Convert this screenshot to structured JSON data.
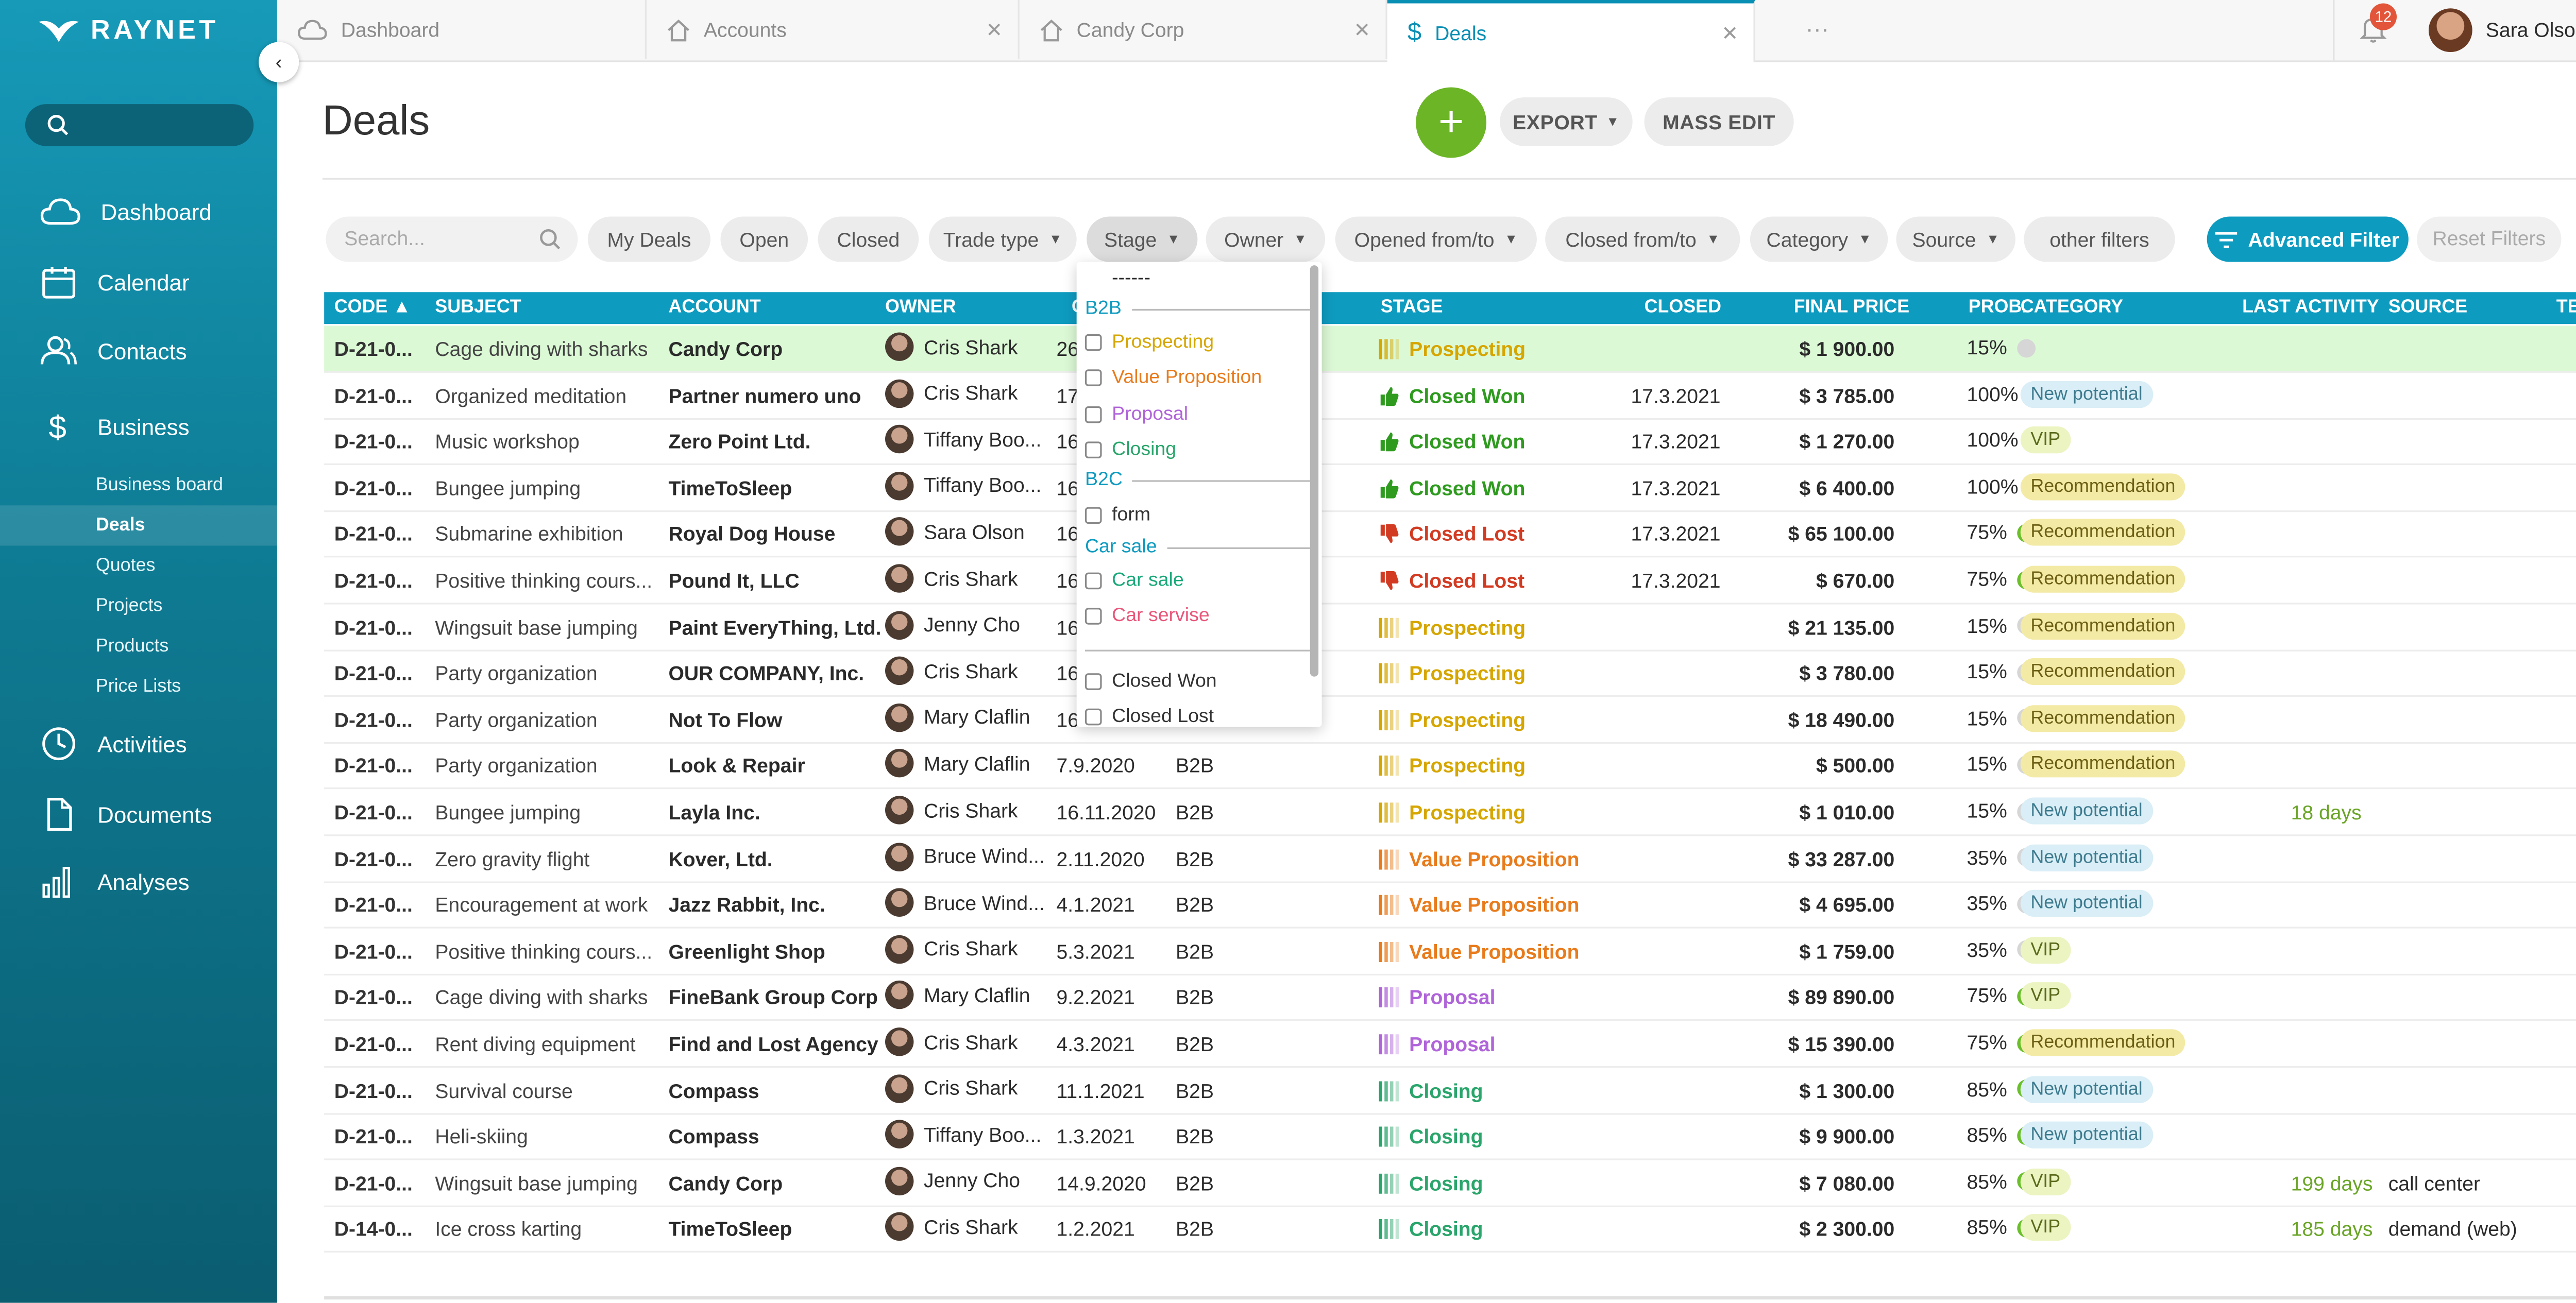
{
  "app": {
    "logo": "RAYNET"
  },
  "sidebar": {
    "main": [
      {
        "label": "Dashboard",
        "icon": "cloud-icon"
      },
      {
        "label": "Calendar",
        "icon": "calendar-icon"
      },
      {
        "label": "Contacts",
        "icon": "contacts-icon"
      },
      {
        "label": "Business",
        "icon": "dollar-icon"
      },
      {
        "label": "Activities",
        "icon": "clock-icon"
      },
      {
        "label": "Documents",
        "icon": "document-icon"
      },
      {
        "label": "Analyses",
        "icon": "bar-chart-icon"
      }
    ],
    "sub": [
      "Business board",
      "Deals",
      "Quotes",
      "Projects",
      "Products",
      "Price Lists"
    ]
  },
  "tabs": [
    {
      "label": "Dashboard",
      "icon": "cloud-icon"
    },
    {
      "label": "Accounts",
      "icon": "home-icon"
    },
    {
      "label": "Candy Corp",
      "icon": "home-icon"
    },
    {
      "label": "Deals",
      "icon": "dollar-icon"
    }
  ],
  "tabs_more": "···",
  "notifications": {
    "count": "12"
  },
  "user": {
    "name": "Sara Olson"
  },
  "page": {
    "title": "Deals",
    "add": "+",
    "export": "EXPORT",
    "mass_edit": "MASS EDIT",
    "close": "✕"
  },
  "filters": {
    "search_placeholder": "Search...",
    "buttons": [
      "My Deals",
      "Open",
      "Closed",
      "Trade type",
      "Stage",
      "Owner",
      "Opened from/to",
      "Closed from/to",
      "Category",
      "Source",
      "other filters"
    ],
    "advanced": "Advanced Filter",
    "reset": "Reset Filters"
  },
  "table": {
    "headers": [
      "CODE ▲",
      "SUBJECT",
      "ACCOUNT",
      "OWNER",
      "O",
      "STAGE",
      "CLOSED",
      "FINAL PRICE",
      "PROB.",
      "CATEGORY",
      "LAST ACTIVITY",
      "SOURCE",
      "TES"
    ],
    "rows": [
      {
        "code": "D-21-0...",
        "subject": "Cage diving with sharks",
        "account": "Candy Corp",
        "owner": "Cris Shark",
        "opened": "26",
        "trade": "",
        "stage": "Prospecting",
        "closed": "",
        "price": "$ 1 900.00",
        "prob": "15%",
        "category": "",
        "last": "",
        "source": ""
      },
      {
        "code": "D-21-0...",
        "subject": "Organized meditation",
        "account": "Partner numero uno",
        "owner": "Cris Shark",
        "opened": "17",
        "trade": "",
        "stage": "Closed Won",
        "closed": "17.3.2021",
        "price": "$ 3 785.00",
        "prob": "100%",
        "category": "New potential",
        "last": "",
        "source": ""
      },
      {
        "code": "D-21-0...",
        "subject": "Music workshop",
        "account": "Zero Point Ltd.",
        "owner": "Tiffany Boo...",
        "opened": "16",
        "trade": "",
        "stage": "Closed Won",
        "closed": "17.3.2021",
        "price": "$ 1 270.00",
        "prob": "100%",
        "category": "VIP",
        "last": "",
        "source": ""
      },
      {
        "code": "D-21-0...",
        "subject": "Bungee jumping",
        "account": "TimeToSleep",
        "owner": "Tiffany Boo...",
        "opened": "16",
        "trade": "",
        "stage": "Closed Won",
        "closed": "17.3.2021",
        "price": "$ 6 400.00",
        "prob": "100%",
        "category": "Recommendation",
        "last": "",
        "source": ""
      },
      {
        "code": "D-21-0...",
        "subject": "Submarine exhibition",
        "account": "Royal Dog House",
        "owner": "Sara Olson",
        "opened": "16",
        "trade": "",
        "stage": "Closed Lost",
        "closed": "17.3.2021",
        "price": "$ 65 100.00",
        "prob": "75%",
        "category": "Recommendation",
        "last": "",
        "source": ""
      },
      {
        "code": "D-21-0...",
        "subject": "Positive thinking cours...",
        "account": "Pound It, LLC",
        "owner": "Cris Shark",
        "opened": "16",
        "trade": "",
        "stage": "Closed Lost",
        "closed": "17.3.2021",
        "price": "$ 670.00",
        "prob": "75%",
        "category": "Recommendation",
        "last": "",
        "source": ""
      },
      {
        "code": "D-21-0...",
        "subject": "Wingsuit base jumping",
        "account": "Paint EveryThing, Ltd.",
        "owner": "Jenny Cho",
        "opened": "16",
        "trade": "",
        "stage": "Prospecting",
        "closed": "",
        "price": "$ 21 135.00",
        "prob": "15%",
        "category": "Recommendation",
        "last": "",
        "source": ""
      },
      {
        "code": "D-21-0...",
        "subject": "Party organization",
        "account": "OUR COMPANY, Inc.",
        "owner": "Cris Shark",
        "opened": "16",
        "trade": "",
        "stage": "Prospecting",
        "closed": "",
        "price": "$ 3 780.00",
        "prob": "15%",
        "category": "Recommendation",
        "last": "",
        "source": ""
      },
      {
        "code": "D-21-0...",
        "subject": "Party organization",
        "account": "Not To Flow",
        "owner": "Mary Claflin",
        "opened": "16",
        "trade": "",
        "stage": "Prospecting",
        "closed": "",
        "price": "$ 18 490.00",
        "prob": "15%",
        "category": "Recommendation",
        "last": "",
        "source": ""
      },
      {
        "code": "D-21-0...",
        "subject": "Party organization",
        "account": "Look & Repair",
        "owner": "Mary Claflin",
        "opened": "7.9.2020",
        "trade": "B2B",
        "stage": "Prospecting",
        "closed": "",
        "price": "$ 500.00",
        "prob": "15%",
        "category": "Recommendation",
        "last": "",
        "source": ""
      },
      {
        "code": "D-21-0...",
        "subject": "Bungee jumping",
        "account": "Layla Inc.",
        "owner": "Cris Shark",
        "opened": "16.11.2020",
        "trade": "B2B",
        "stage": "Prospecting",
        "closed": "",
        "price": "$ 1 010.00",
        "prob": "15%",
        "category": "New potential",
        "last": "18 days",
        "source": ""
      },
      {
        "code": "D-21-0...",
        "subject": "Zero gravity flight",
        "account": "Kover, Ltd.",
        "owner": "Bruce Wind...",
        "opened": "2.11.2020",
        "trade": "B2B",
        "stage": "Value Proposition",
        "closed": "",
        "price": "$ 33 287.00",
        "prob": "35%",
        "category": "New potential",
        "last": "",
        "source": ""
      },
      {
        "code": "D-21-0...",
        "subject": "Encouragement at work",
        "account": "Jazz Rabbit, Inc.",
        "owner": "Bruce Wind...",
        "opened": "4.1.2021",
        "trade": "B2B",
        "stage": "Value Proposition",
        "closed": "",
        "price": "$ 4 695.00",
        "prob": "35%",
        "category": "New potential",
        "last": "",
        "source": ""
      },
      {
        "code": "D-21-0...",
        "subject": "Positive thinking cours...",
        "account": "Greenlight Shop",
        "owner": "Cris Shark",
        "opened": "5.3.2021",
        "trade": "B2B",
        "stage": "Value Proposition",
        "closed": "",
        "price": "$ 1 759.00",
        "prob": "35%",
        "category": "VIP",
        "last": "",
        "source": ""
      },
      {
        "code": "D-21-0...",
        "subject": "Cage diving with sharks",
        "account": "FineBank Group Corp",
        "owner": "Mary Claflin",
        "opened": "9.2.2021",
        "trade": "B2B",
        "stage": "Proposal",
        "closed": "",
        "price": "$ 89 890.00",
        "prob": "75%",
        "category": "VIP",
        "last": "",
        "source": ""
      },
      {
        "code": "D-21-0...",
        "subject": "Rent diving equipment",
        "account": "Find and Lost Agency",
        "owner": "Cris Shark",
        "opened": "4.3.2021",
        "trade": "B2B",
        "stage": "Proposal",
        "closed": "",
        "price": "$ 15 390.00",
        "prob": "75%",
        "category": "Recommendation",
        "last": "",
        "source": ""
      },
      {
        "code": "D-21-0...",
        "subject": "Survival course",
        "account": "Compass",
        "owner": "Cris Shark",
        "opened": "11.1.2021",
        "trade": "B2B",
        "stage": "Closing",
        "closed": "",
        "price": "$ 1 300.00",
        "prob": "85%",
        "category": "New potential",
        "last": "",
        "source": ""
      },
      {
        "code": "D-21-0...",
        "subject": "Heli-skiing",
        "account": "Compass",
        "owner": "Tiffany Boo...",
        "opened": "1.3.2021",
        "trade": "B2B",
        "stage": "Closing",
        "closed": "",
        "price": "$ 9 900.00",
        "prob": "85%",
        "category": "New potential",
        "last": "",
        "source": ""
      },
      {
        "code": "D-21-0...",
        "subject": "Wingsuit base jumping",
        "account": "Candy Corp",
        "owner": "Jenny Cho",
        "opened": "14.9.2020",
        "trade": "B2B",
        "stage": "Closing",
        "closed": "",
        "price": "$ 7 080.00",
        "prob": "85%",
        "category": "VIP",
        "last": "199 days",
        "source": "call center"
      },
      {
        "code": "D-14-0...",
        "subject": "Ice cross karting",
        "account": "TimeToSleep",
        "owner": "Cris Shark",
        "opened": "1.2.2021",
        "trade": "B2B",
        "stage": "Closing",
        "closed": "",
        "price": "$ 2 300.00",
        "prob": "85%",
        "category": "VIP",
        "last": "185 days",
        "source": "demand (web)"
      }
    ]
  },
  "stage_dropdown": {
    "blank": "------",
    "groups": [
      {
        "title": "B2B",
        "items": [
          "Prospecting",
          "Value Proposition",
          "Proposal",
          "Closing"
        ]
      },
      {
        "title": "B2C",
        "items": [
          "form"
        ]
      },
      {
        "title": "Car sale",
        "items": [
          "Car sale",
          "Car servise"
        ]
      },
      {
        "title": "",
        "items": [
          "Closed Won",
          "Closed Lost"
        ]
      }
    ]
  },
  "colors": {
    "accent": "#0e9bc0",
    "add_button": "#6cb526",
    "prospecting": "#d6a600",
    "value_proposition": "#e87b1c",
    "proposal": "#b064d9",
    "closing": "#2aa56b",
    "closed_won": "#2e9b1f",
    "closed_lost": "#d23b22",
    "car_sale": "#1aa87a",
    "car_servise": "#e8567a",
    "prob_green": "#6abf2b",
    "prob_grey": "#d6d6d6"
  }
}
